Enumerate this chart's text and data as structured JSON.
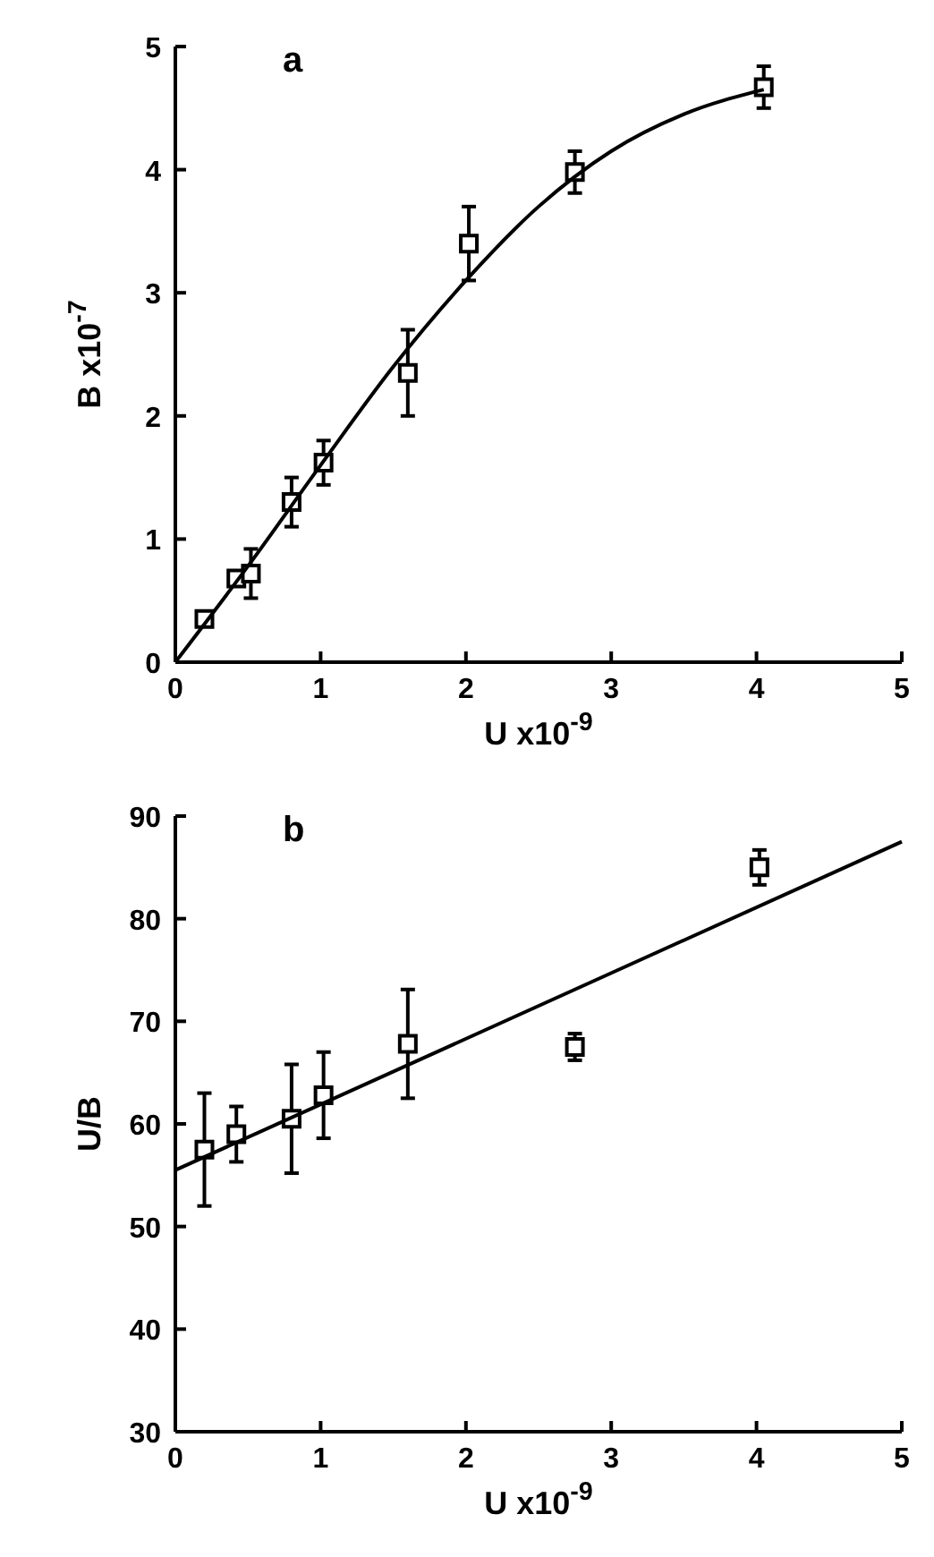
{
  "chart_data": [
    {
      "type": "scatter",
      "title": "a",
      "xlabel": "U x10$^{-9}$",
      "ylabel": "B x10$^{-7}$",
      "xlim": [
        0,
        5
      ],
      "ylim": [
        0,
        5
      ],
      "xticks": [
        0,
        1,
        2,
        3,
        4,
        5
      ],
      "yticks": [
        0,
        1,
        2,
        3,
        4,
        5
      ],
      "grid": false,
      "series": [
        {
          "marker": "square",
          "color": "#000000",
          "x": [
            0.2,
            0.42,
            0.52,
            0.8,
            1.02,
            1.6,
            2.02,
            2.75,
            4.05
          ],
          "values": [
            0.35,
            0.68,
            0.72,
            1.3,
            1.62,
            2.35,
            3.4,
            3.98,
            4.67
          ],
          "errors": [
            null,
            null,
            0.2,
            0.2,
            0.18,
            0.35,
            0.3,
            0.17,
            0.17
          ]
        },
        {
          "type": "line",
          "marker": "none",
          "color": "#000000",
          "x": [
            0,
            0.5,
            1,
            1.5,
            2,
            2.5,
            3,
            3.5,
            4.05
          ],
          "values": [
            0,
            0.78,
            1.6,
            2.4,
            3.1,
            3.7,
            4.15,
            4.45,
            4.65
          ]
        }
      ]
    },
    {
      "type": "scatter",
      "title": "b",
      "xlabel": "U x10$^{-9}$",
      "ylabel": "U/B",
      "xlim": [
        0,
        5
      ],
      "ylim": [
        30,
        90
      ],
      "xticks": [
        0,
        1,
        2,
        3,
        4,
        5
      ],
      "yticks": [
        30,
        40,
        50,
        60,
        70,
        80,
        90
      ],
      "grid": false,
      "series": [
        {
          "marker": "square",
          "color": "#000000",
          "x": [
            0.2,
            0.42,
            0.8,
            1.02,
            1.6,
            2.75,
            4.02
          ],
          "values": [
            57.5,
            59,
            60.5,
            62.8,
            67.8,
            67.5,
            85
          ],
          "errors": [
            5.5,
            2.7,
            5.3,
            4.2,
            5.3,
            1.3,
            1.7
          ]
        },
        {
          "type": "line",
          "marker": "none",
          "color": "#000000",
          "x": [
            0,
            5
          ],
          "values": [
            55.5,
            87.5
          ]
        }
      ]
    }
  ]
}
